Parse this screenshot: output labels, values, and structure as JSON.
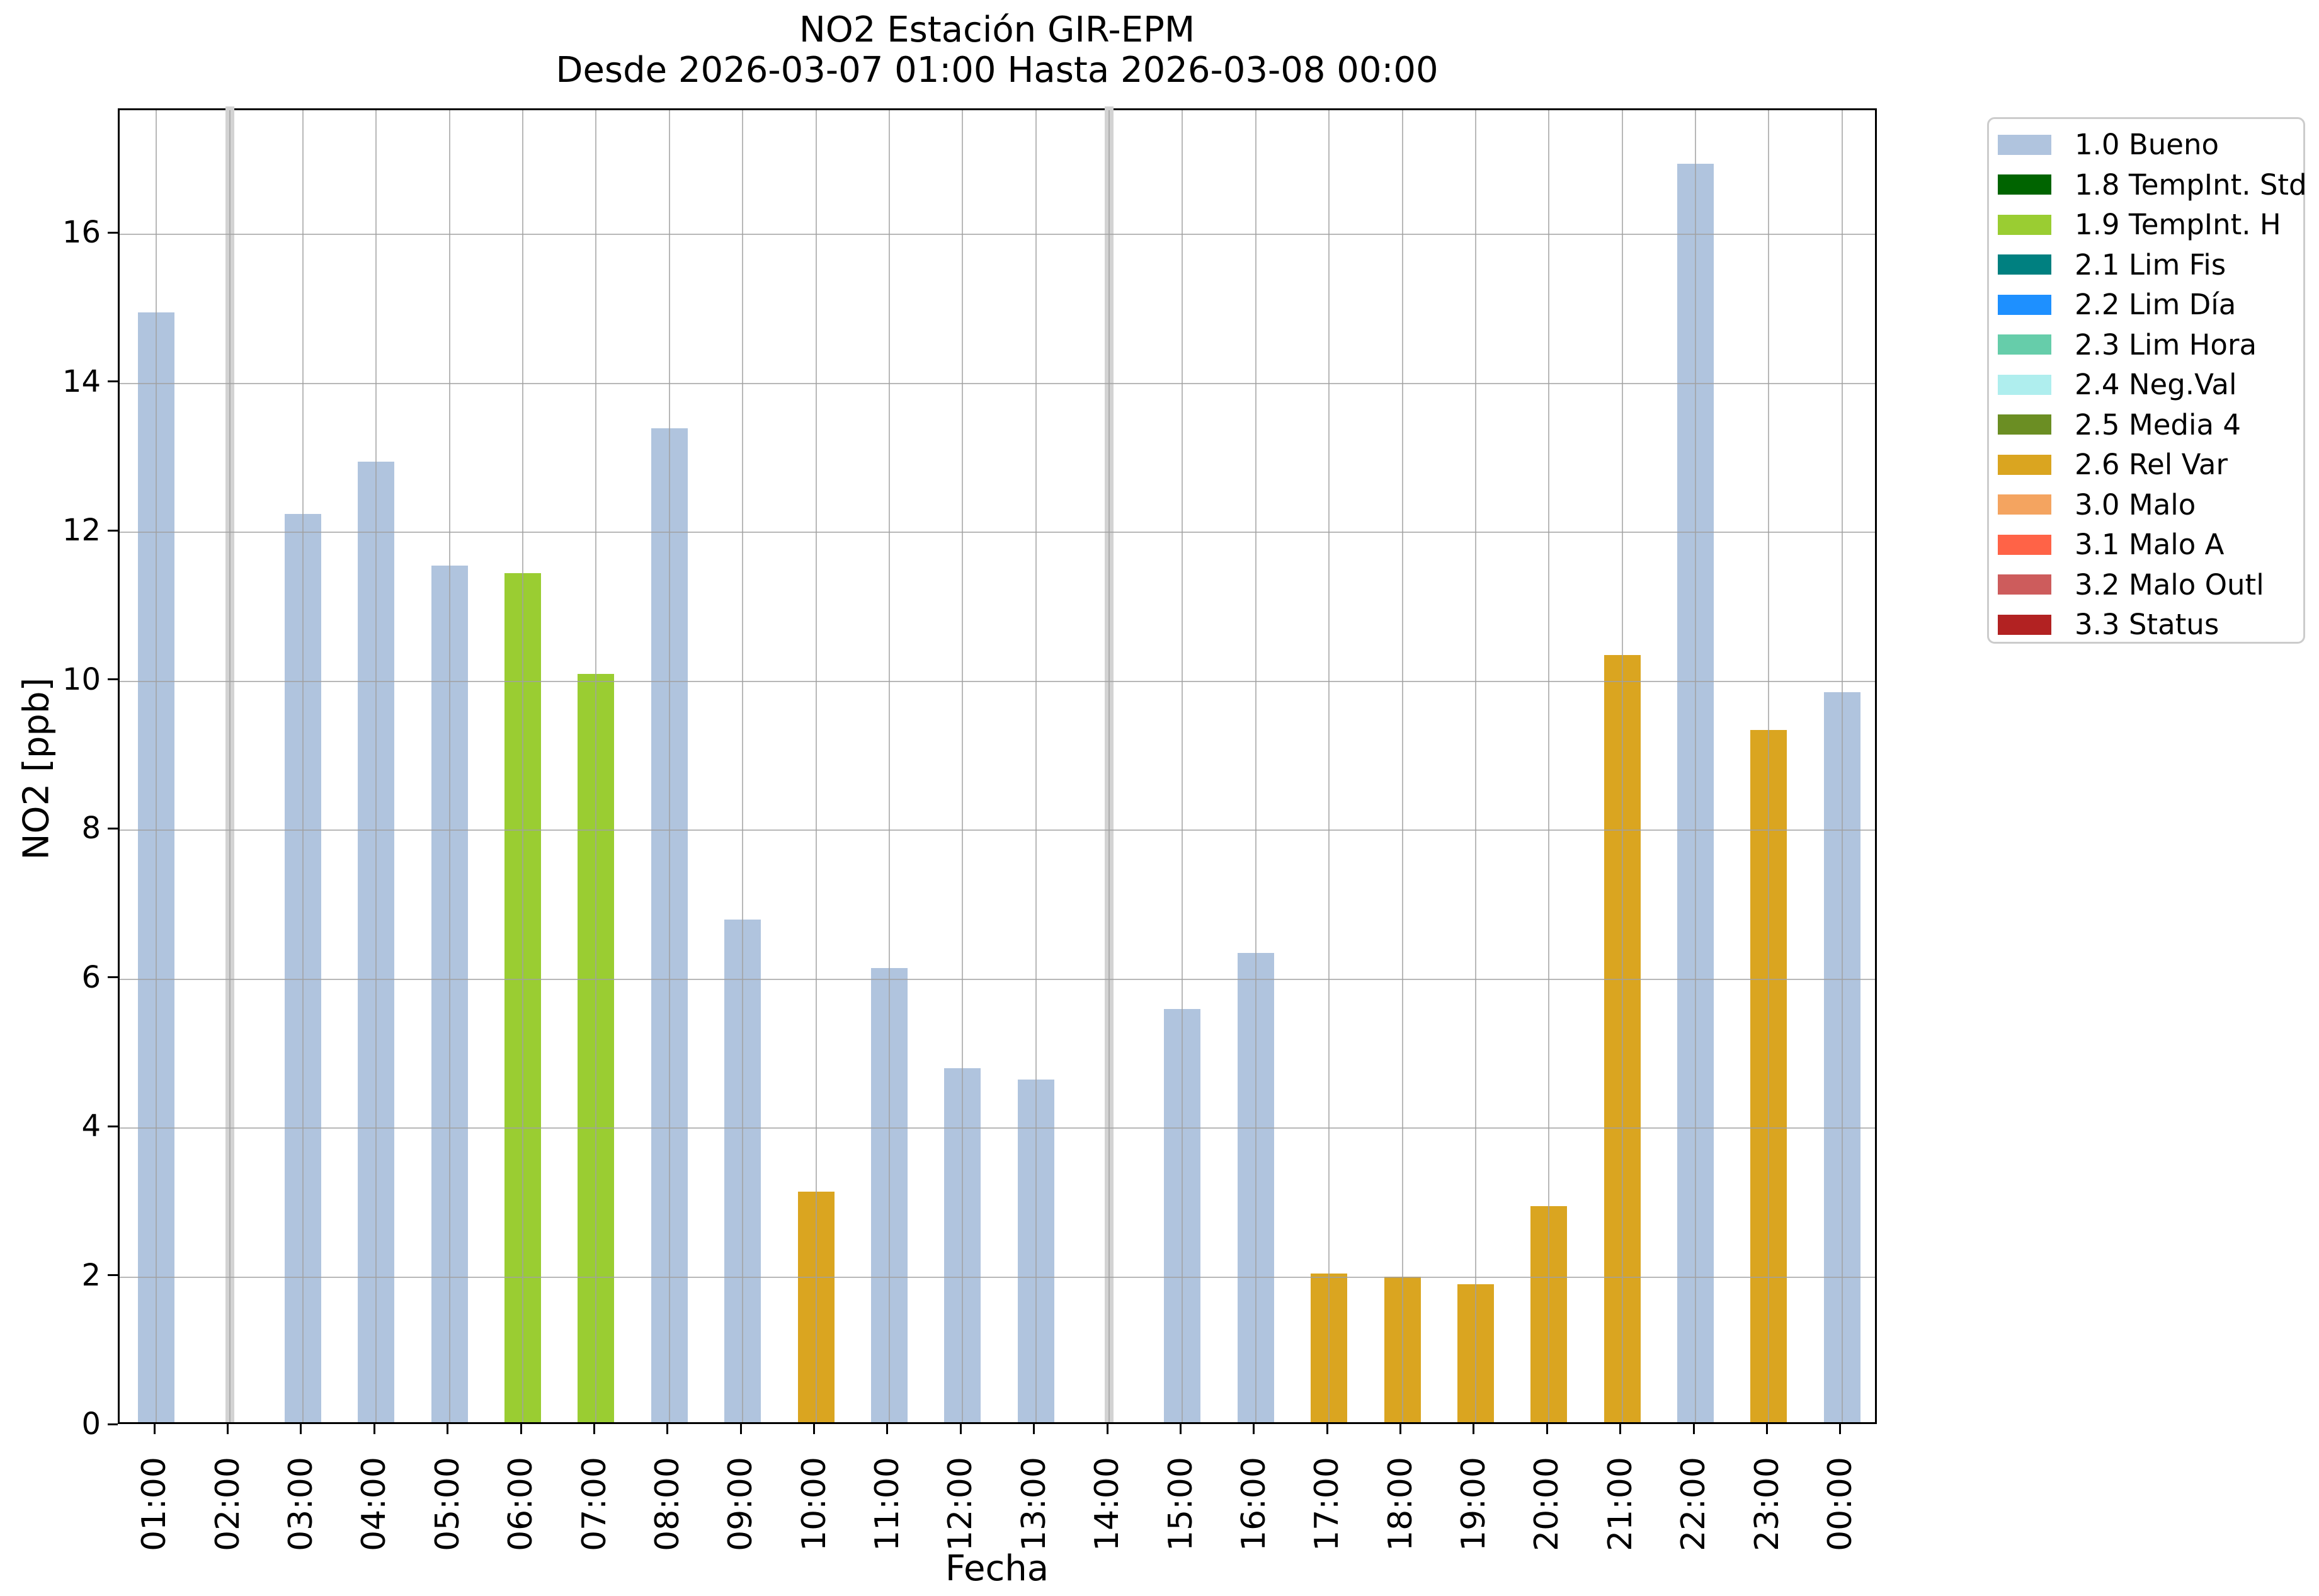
{
  "title": {
    "line1": "NO2 Estación GIR-EPM",
    "line2": "Desde 2026-03-07 01:00 Hasta 2026-03-08 00:00"
  },
  "chart_data": {
    "type": "bar",
    "title": "NO2 Estación GIR-EPM — Desde 2026-03-07 01:00 Hasta 2026-03-08 00:00",
    "xlabel": "Fecha",
    "ylabel": "NO2 [ppb]",
    "ylim": [
      0,
      17.67
    ],
    "yticks": [
      0,
      2,
      4,
      6,
      8,
      10,
      12,
      14,
      16
    ],
    "grid": true,
    "legend_position": "outside-upper-right",
    "categories": [
      "01:00",
      "02:00",
      "03:00",
      "04:00",
      "05:00",
      "06:00",
      "07:00",
      "08:00",
      "09:00",
      "10:00",
      "11:00",
      "12:00",
      "13:00",
      "14:00",
      "15:00",
      "16:00",
      "17:00",
      "18:00",
      "19:00",
      "20:00",
      "21:00",
      "22:00",
      "23:00",
      "00:00"
    ],
    "bars": [
      {
        "time": "01:00",
        "value": 14.9,
        "flag": "1.0 Bueno"
      },
      {
        "time": "02:00",
        "value": null,
        "flag": "missing"
      },
      {
        "time": "03:00",
        "value": 12.2,
        "flag": "1.0 Bueno"
      },
      {
        "time": "04:00",
        "value": 12.9,
        "flag": "1.0 Bueno"
      },
      {
        "time": "05:00",
        "value": 11.5,
        "flag": "1.0 Bueno"
      },
      {
        "time": "06:00",
        "value": 11.4,
        "flag": "1.9 TempInt. H"
      },
      {
        "time": "07:00",
        "value": 10.05,
        "flag": "1.9 TempInt. H"
      },
      {
        "time": "08:00",
        "value": 13.35,
        "flag": "1.0 Bueno"
      },
      {
        "time": "09:00",
        "value": 6.75,
        "flag": "1.0 Bueno"
      },
      {
        "time": "10:00",
        "value": 3.1,
        "flag": "2.6 Rel Var"
      },
      {
        "time": "11:00",
        "value": 6.1,
        "flag": "1.0 Bueno"
      },
      {
        "time": "12:00",
        "value": 4.75,
        "flag": "1.0 Bueno"
      },
      {
        "time": "13:00",
        "value": 4.6,
        "flag": "1.0 Bueno"
      },
      {
        "time": "14:00",
        "value": null,
        "flag": "missing"
      },
      {
        "time": "15:00",
        "value": 5.55,
        "flag": "1.0 Bueno"
      },
      {
        "time": "16:00",
        "value": 6.3,
        "flag": "1.0 Bueno"
      },
      {
        "time": "17:00",
        "value": 2.0,
        "flag": "2.6 Rel Var"
      },
      {
        "time": "18:00",
        "value": 1.95,
        "flag": "2.6 Rel Var"
      },
      {
        "time": "19:00",
        "value": 1.85,
        "flag": "2.6 Rel Var"
      },
      {
        "time": "20:00",
        "value": 2.9,
        "flag": "2.6 Rel Var"
      },
      {
        "time": "21:00",
        "value": 10.3,
        "flag": "2.6 Rel Var"
      },
      {
        "time": "22:00",
        "value": 16.9,
        "flag": "1.0 Bueno"
      },
      {
        "time": "23:00",
        "value": 9.3,
        "flag": "2.6 Rel Var"
      },
      {
        "time": "00:00",
        "value": 9.8,
        "flag": "1.0 Bueno"
      }
    ],
    "flag_colors": {
      "1.0 Bueno": "#b0c4de",
      "1.8 TempInt. Std": "#006400",
      "1.9 TempInt. H": "#9acd32",
      "2.1 Lim Fis": "#008080",
      "2.2 Lim Día": "#1e90ff",
      "2.3 Lim Hora": "#66cdaa",
      "2.4 Neg.Val": "#afeeee",
      "2.5 Media 4": "#6b8e23",
      "2.6 Rel Var": "#daa520",
      "3.0 Malo": "#f4a460",
      "3.1 Malo A": "#ff6347",
      "3.2 Malo Outl": "#cd5c5c",
      "3.3 Status": "#b22222"
    },
    "missing_color": "#d3d3d3"
  },
  "legend": {
    "items": [
      {
        "label": "1.0 Bueno",
        "color": "#b0c4de"
      },
      {
        "label": "1.8 TempInt. Std",
        "color": "#006400"
      },
      {
        "label": "1.9 TempInt. H",
        "color": "#9acd32"
      },
      {
        "label": "2.1 Lim Fis",
        "color": "#008080"
      },
      {
        "label": "2.2 Lim Día",
        "color": "#1e90ff"
      },
      {
        "label": "2.3 Lim Hora",
        "color": "#66cdaa"
      },
      {
        "label": "2.4 Neg.Val",
        "color": "#afeeee"
      },
      {
        "label": "2.5 Media 4",
        "color": "#6b8e23"
      },
      {
        "label": "2.6 Rel Var",
        "color": "#daa520"
      },
      {
        "label": "3.0 Malo",
        "color": "#f4a460"
      },
      {
        "label": "3.1 Malo A",
        "color": "#ff6347"
      },
      {
        "label": "3.2 Malo Outl",
        "color": "#cd5c5c"
      },
      {
        "label": "3.3 Status",
        "color": "#b22222"
      }
    ]
  }
}
